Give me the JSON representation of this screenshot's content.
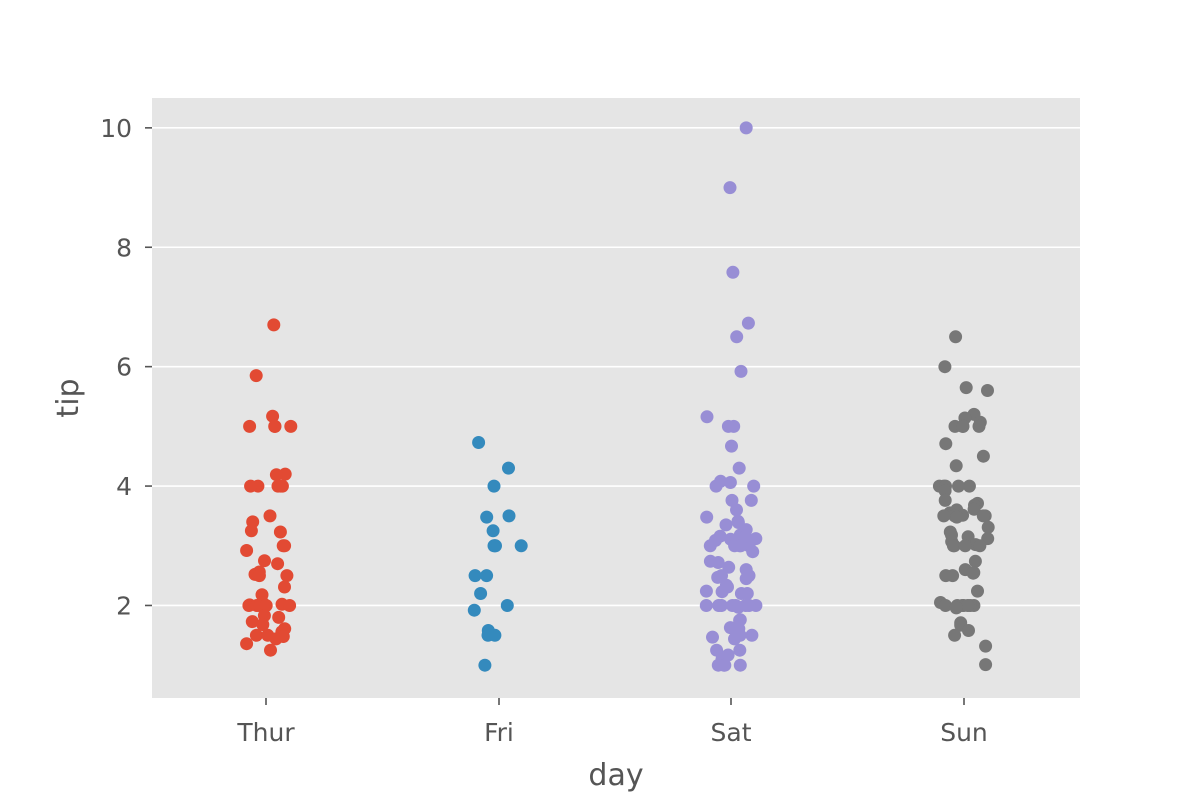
{
  "chart_data": {
    "type": "scatter",
    "subtype": "strip",
    "xlabel": "day",
    "ylabel": "tip",
    "ylim": [
      0.45,
      10.5
    ],
    "yticks": [
      2,
      4,
      6,
      8,
      10
    ],
    "grid": true,
    "legend": "none",
    "background": "#e5e5e5",
    "grid_color": "#ffffff",
    "categories": [
      "Thur",
      "Fri",
      "Sat",
      "Sun"
    ],
    "series": [
      {
        "category": "Thur",
        "color": "#e24a33",
        "values": [
          6.7,
          5.85,
          5.17,
          5.0,
          5.0,
          5.0,
          5.0,
          4.2,
          4.19,
          4.0,
          4.0,
          4.0,
          4.0,
          4.0,
          3.5,
          3.4,
          3.25,
          3.23,
          3.0,
          3.0,
          2.92,
          2.75,
          2.7,
          2.56,
          2.52,
          2.5,
          2.5,
          2.31,
          2.18,
          2.05,
          2.02,
          2.01,
          2.0,
          2.0,
          2.0,
          2.0,
          2.0,
          1.83,
          1.8,
          1.73,
          1.68,
          1.61,
          1.56,
          1.5,
          1.5,
          1.48,
          1.44,
          1.36,
          1.25
        ]
      },
      {
        "category": "Fri",
        "color": "#348abd",
        "values": [
          4.73,
          4.3,
          4.0,
          3.5,
          3.48,
          3.25,
          3.0,
          3.0,
          3.0,
          3.0,
          2.5,
          2.5,
          2.2,
          2.0,
          1.92,
          1.58,
          1.5,
          1.5,
          1.0
        ]
      },
      {
        "category": "Sat",
        "color": "#988ed5",
        "values": [
          10.0,
          9.0,
          7.58,
          6.73,
          6.5,
          5.92,
          5.16,
          5.0,
          5.0,
          4.67,
          4.3,
          4.08,
          4.06,
          4.0,
          4.0,
          3.76,
          3.76,
          3.6,
          3.48,
          3.41,
          3.39,
          3.35,
          3.27,
          3.18,
          3.16,
          3.15,
          3.12,
          3.11,
          3.09,
          3.07,
          3.0,
          3.0,
          3.0,
          3.0,
          3.0,
          2.9,
          2.74,
          2.72,
          2.64,
          2.6,
          2.5,
          2.5,
          2.47,
          2.45,
          2.34,
          2.31,
          2.24,
          2.23,
          2.2,
          2.2,
          2.0,
          2.0,
          2.0,
          2.0,
          2.0,
          2.0,
          2.0,
          2.0,
          1.97,
          1.76,
          1.75,
          1.63,
          1.61,
          1.5,
          1.5,
          1.47,
          1.44,
          1.25,
          1.25,
          1.17,
          1.1,
          1.0,
          1.0,
          1.0,
          1.0
        ]
      },
      {
        "category": "Sun",
        "color": "#777777",
        "values": [
          6.5,
          6.0,
          5.65,
          5.6,
          5.2,
          5.14,
          5.07,
          5.0,
          5.0,
          5.0,
          5.0,
          4.71,
          4.5,
          4.34,
          4.0,
          4.0,
          4.0,
          4.0,
          4.0,
          3.92,
          3.76,
          3.71,
          3.68,
          3.61,
          3.6,
          3.55,
          3.51,
          3.5,
          3.5,
          3.5,
          3.5,
          3.48,
          3.31,
          3.23,
          3.18,
          3.15,
          3.12,
          3.07,
          3.02,
          3.0,
          3.0,
          3.0,
          3.0,
          2.74,
          2.6,
          2.55,
          2.54,
          2.5,
          2.5,
          2.24,
          2.05,
          2.0,
          2.0,
          2.0,
          2.0,
          2.0,
          2.0,
          2.0,
          1.96,
          1.71,
          1.67,
          1.58,
          1.5,
          1.32,
          1.01
        ]
      }
    ]
  }
}
